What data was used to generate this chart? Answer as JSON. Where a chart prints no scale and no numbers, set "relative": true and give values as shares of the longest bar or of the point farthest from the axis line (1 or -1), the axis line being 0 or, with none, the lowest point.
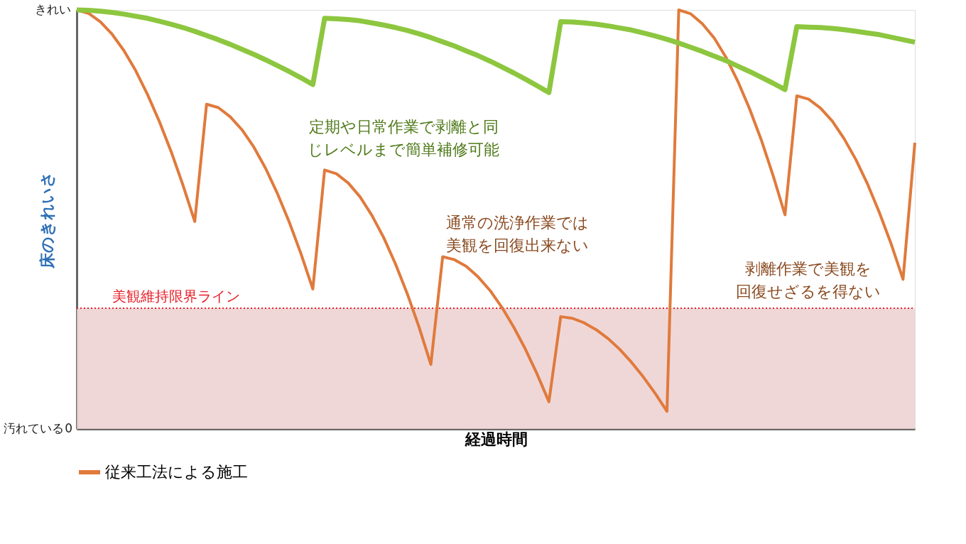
{
  "chart_data": {
    "type": "line",
    "relative": true,
    "xlabel": "経過時間",
    "ylabel": "床のきれいさ",
    "categories": [
      null,
      null,
      null,
      null,
      null,
      null,
      null,
      null,
      null,
      null,
      null,
      null,
      null,
      null,
      null,
      null,
      null,
      null,
      null,
      null,
      null,
      null,
      null,
      null,
      null,
      null,
      null,
      null,
      null,
      null,
      null,
      null,
      null,
      null,
      null,
      null,
      null,
      null,
      null,
      null,
      null,
      null,
      null,
      null,
      null,
      null,
      null,
      null,
      null,
      null,
      null,
      null,
      null,
      null,
      null,
      null,
      null,
      null,
      null,
      null,
      null,
      null,
      null,
      null,
      null,
      null,
      null,
      null,
      null,
      null,
      null,
      null
    ],
    "series": [
      {
        "name": "従来工法による施工",
        "color": "#e07a3c",
        "values": [
          1,
          0.992,
          0.972,
          0.942,
          0.903,
          0.855,
          0.798,
          0.734,
          0.662,
          0.582,
          0.495,
          0.775,
          0.767,
          0.745,
          0.714,
          0.673,
          0.622,
          0.562,
          0.494,
          0.418,
          0.334,
          0.618,
          0.609,
          0.587,
          0.554,
          0.51,
          0.457,
          0.394,
          0.323,
          0.243,
          0.154,
          0.411,
          0.404,
          0.388,
          0.363,
          0.331,
          0.291,
          0.244,
          0.191,
          0.131,
          0.065,
          0.268,
          0.264,
          0.253,
          0.237,
          0.216,
          0.19,
          0.159,
          0.124,
          0.085,
          0.042,
          1,
          0.991,
          0.967,
          0.933,
          0.887,
          0.83,
          0.764,
          0.689,
          0.604,
          0.511,
          0.795,
          0.787,
          0.766,
          0.735,
          0.693,
          0.643,
          0.584,
          0.516,
          0.441,
          0.357,
          0.683
        ]
      },
      {
        "color": "#8dc63f",
        "values": [
          1,
          0.999,
          0.997,
          0.994,
          0.99,
          0.985,
          0.98,
          0.973,
          0.966,
          0.958,
          0.949,
          0.939,
          0.929,
          0.918,
          0.906,
          0.894,
          0.881,
          0.867,
          0.853,
          0.838,
          0.822,
          0.98,
          0.979,
          0.977,
          0.974,
          0.969,
          0.964,
          0.958,
          0.951,
          0.943,
          0.934,
          0.924,
          0.914,
          0.902,
          0.891,
          0.878,
          0.864,
          0.85,
          0.835,
          0.819,
          0.803,
          0.972,
          0.971,
          0.969,
          0.966,
          0.962,
          0.957,
          0.952,
          0.945,
          0.938,
          0.93,
          0.921,
          0.911,
          0.901,
          0.89,
          0.879,
          0.866,
          0.853,
          0.839,
          0.825,
          0.81,
          0.96,
          0.959,
          0.958,
          0.956,
          0.953,
          0.949,
          0.945,
          0.941,
          0.935,
          0.929,
          0.923
        ]
      }
    ],
    "ref_lines": [
      {
        "axis": "y",
        "value": 0.288,
        "label": "美観維持限界ライン",
        "color": "#e8202a",
        "line_style": "dotted"
      }
    ],
    "bands": [
      {
        "axis": "y",
        "from": 0,
        "to": 0.288,
        "color": "#ecd0d0"
      }
    ],
    "annotations": [
      "定期や日常作業で剥離と同じレベルまで簡単補修可能",
      "通常の洗浄作業では美観を回復出来ない",
      "剥離作業で美観を回復せざるを得ない",
      "きれい",
      "汚れている",
      "0"
    ],
    "legend": "bottom",
    "grid": false,
    "marker": "none",
    "line_style": "solid"
  }
}
